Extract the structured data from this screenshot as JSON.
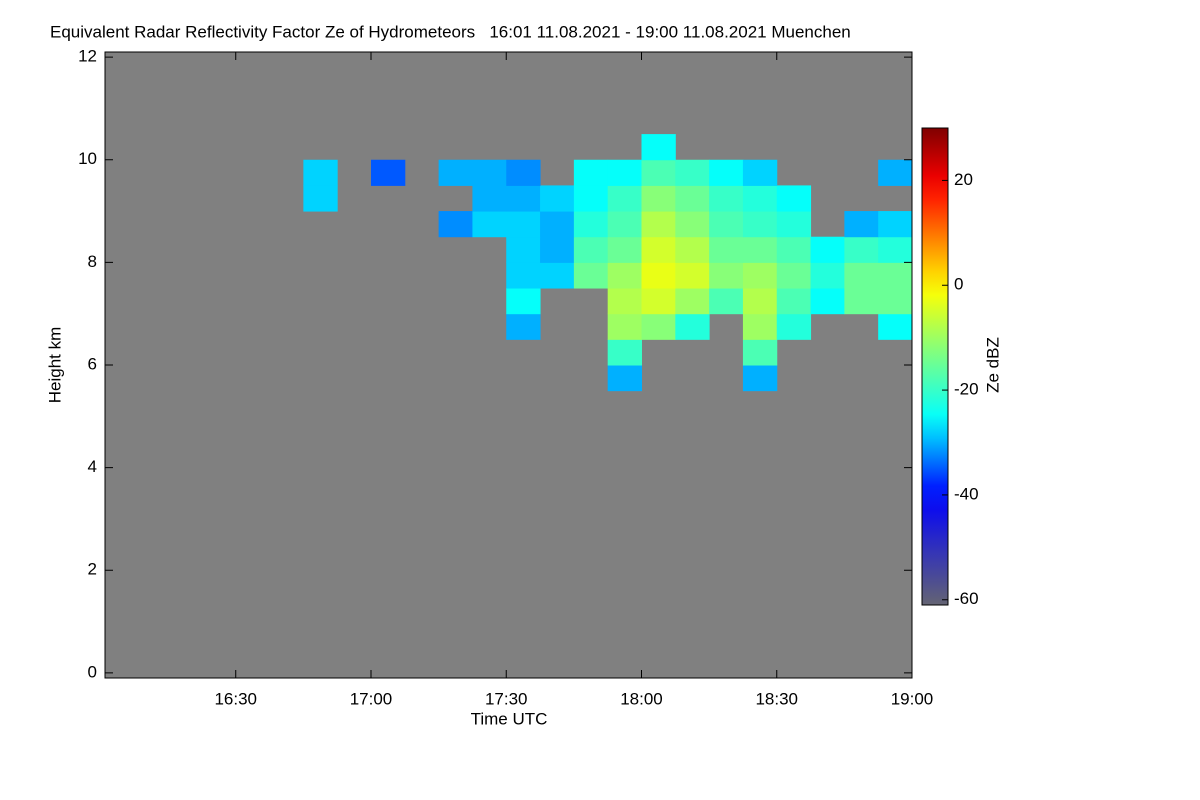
{
  "chart_data": {
    "type": "heatmap",
    "title": "Equivalent Radar Reflectivity Factor Ze of Hydrometeors   16:01 11.08.2021 - 19:00 11.08.2021 Muenchen",
    "x_label": "Time UTC",
    "y_label": "Height km",
    "colorbar_label": "Ze dBZ",
    "background": "#808080",
    "xlim": [
      16.0167,
      19.0
    ],
    "xticks": [
      {
        "value": 16.5,
        "label": "16:30"
      },
      {
        "value": 17.0,
        "label": "17:00"
      },
      {
        "value": 17.5,
        "label": "17:30"
      },
      {
        "value": 18.0,
        "label": "18:00"
      },
      {
        "value": 18.5,
        "label": "18:30"
      },
      {
        "value": 19.0,
        "label": "19:00"
      }
    ],
    "ylim": [
      -0.1,
      12.1
    ],
    "yticks": [
      0,
      2,
      4,
      6,
      8,
      10,
      12
    ],
    "zlim": [
      -61,
      30
    ],
    "zticks": [
      -60,
      -40,
      -20,
      0,
      20
    ],
    "xedges": [
      16.625,
      16.75,
      16.875,
      17.0,
      17.125,
      17.25,
      17.375,
      17.5,
      17.625,
      17.75,
      17.875,
      18.0,
      18.125,
      18.25,
      18.375,
      18.5,
      18.625,
      18.75,
      18.875,
      19.0
    ],
    "yedges": [
      5.5,
      6.0,
      6.5,
      7.0,
      7.5,
      8.0,
      8.5,
      9.0,
      9.5,
      10.0,
      10.5
    ],
    "z": [
      [
        null,
        null,
        null,
        null,
        null,
        null,
        null,
        null,
        null,
        null,
        -30,
        null,
        null,
        null,
        -30,
        null,
        null,
        null,
        null
      ],
      [
        null,
        null,
        null,
        null,
        null,
        null,
        null,
        null,
        null,
        null,
        -20,
        null,
        null,
        null,
        -18,
        null,
        null,
        null,
        null
      ],
      [
        null,
        null,
        null,
        null,
        null,
        null,
        null,
        -30,
        null,
        null,
        -10,
        -12,
        -22,
        null,
        -10,
        -22,
        null,
        null,
        -25
      ],
      [
        null,
        null,
        null,
        null,
        null,
        null,
        null,
        -25,
        null,
        null,
        -8,
        -5,
        -10,
        -18,
        -8,
        -18,
        -25,
        -15,
        -15
      ],
      [
        null,
        null,
        null,
        null,
        null,
        null,
        null,
        -28,
        -28,
        -15,
        -10,
        -3,
        -5,
        -12,
        -10,
        -15,
        -22,
        -15,
        -15
      ],
      [
        null,
        null,
        null,
        null,
        null,
        null,
        null,
        -28,
        -30,
        -18,
        -15,
        -5,
        -8,
        -15,
        -15,
        -18,
        -25,
        -20,
        -22
      ],
      [
        null,
        null,
        null,
        null,
        null,
        -32,
        -28,
        -28,
        -30,
        -22,
        -18,
        -8,
        -12,
        -18,
        -20,
        -22,
        null,
        -30,
        -28
      ],
      [
        null,
        -28,
        null,
        null,
        null,
        null,
        -30,
        -30,
        -28,
        -25,
        -20,
        -12,
        -15,
        -20,
        -22,
        -25,
        null,
        null,
        null
      ],
      [
        null,
        -28,
        null,
        -35,
        null,
        -30,
        -30,
        -32,
        null,
        -25,
        -25,
        -18,
        -20,
        -25,
        -28,
        null,
        null,
        null,
        -30
      ],
      [
        null,
        null,
        null,
        null,
        null,
        null,
        null,
        null,
        null,
        null,
        null,
        -25,
        null,
        null,
        null,
        null,
        null,
        null,
        null
      ]
    ]
  }
}
